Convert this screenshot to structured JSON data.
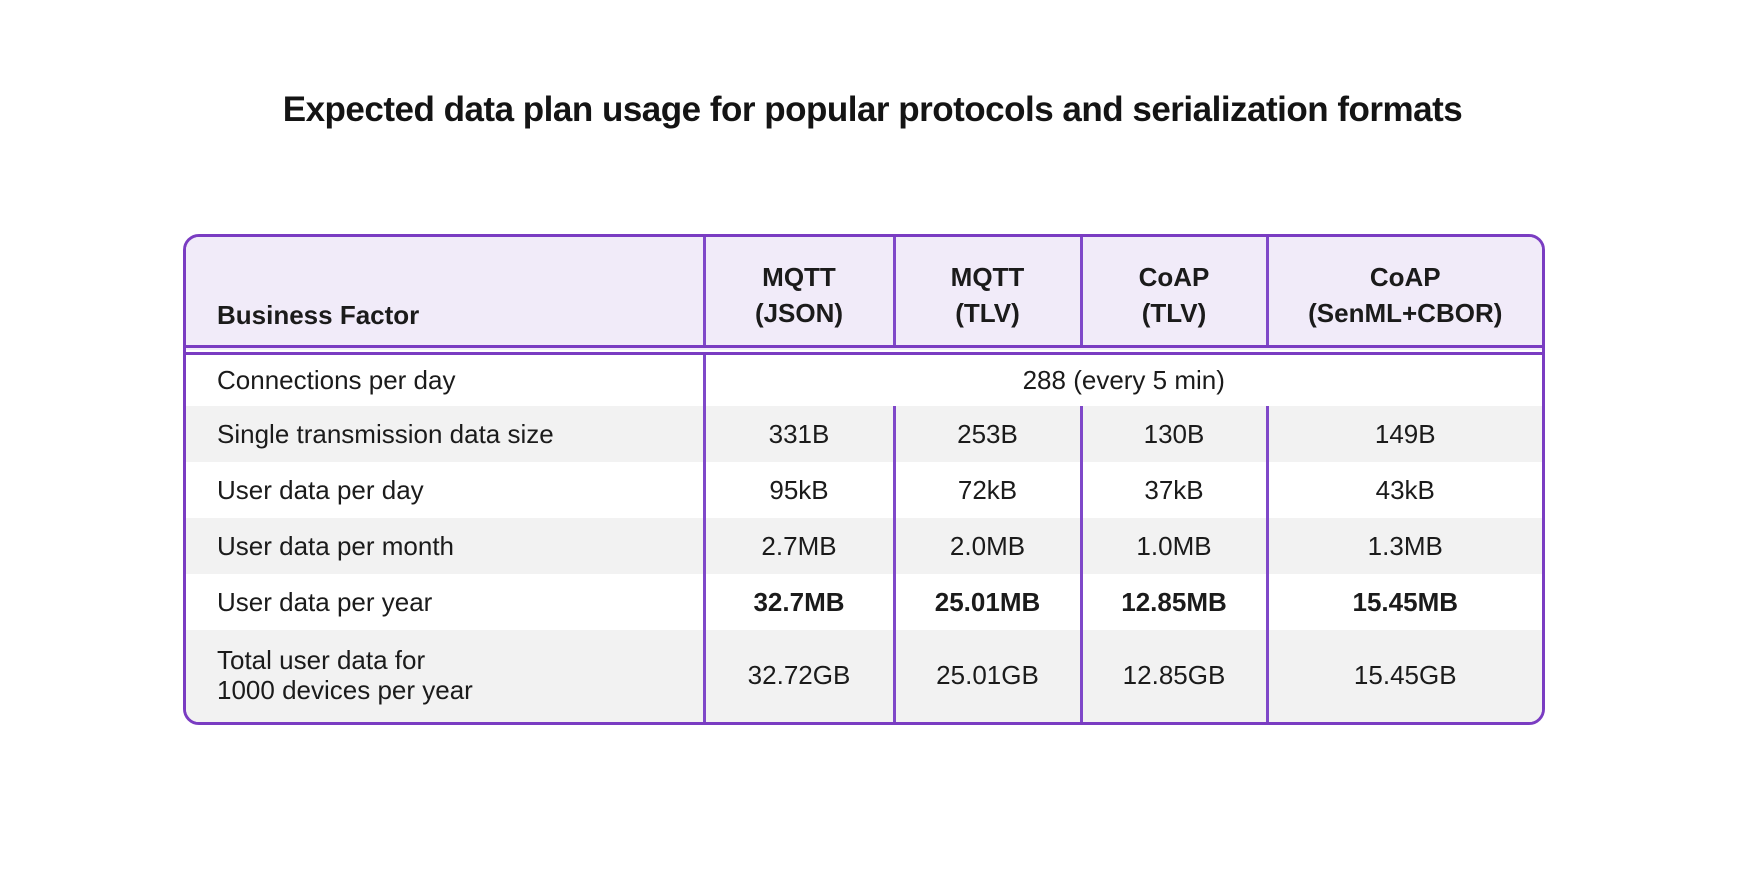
{
  "title": "Expected data plan usage for popular protocols and serialization formats",
  "table": {
    "header": {
      "row_label": "Business Factor",
      "columns": [
        {
          "protocol": "MQTT",
          "format": "(JSON)"
        },
        {
          "protocol": "MQTT",
          "format": "(TLV)"
        },
        {
          "protocol": "CoAP",
          "format": "(TLV)"
        },
        {
          "protocol": "CoAP",
          "format": "(SenML+CBOR)"
        }
      ]
    },
    "merged_row": {
      "label": "Connections per day",
      "value": "288 (every 5 min)"
    },
    "rows": [
      {
        "label": "Single transmission data size",
        "values": [
          "331B",
          "253B",
          "130B",
          "149B"
        ],
        "emphasis": false,
        "shaded": true
      },
      {
        "label": "User data per day",
        "values": [
          "95kB",
          "72kB",
          "37kB",
          "43kB"
        ],
        "emphasis": false,
        "shaded": false
      },
      {
        "label": "User data per month",
        "values": [
          "2.7MB",
          "2.0MB",
          "1.0MB",
          "1.3MB"
        ],
        "emphasis": false,
        "shaded": true
      },
      {
        "label": "User data per year",
        "values": [
          "32.7MB",
          "25.01MB",
          "12.85MB",
          "15.45MB"
        ],
        "emphasis": true,
        "shaded": false
      },
      {
        "label_line1": "Total user data for",
        "label_line2": "1000 devices per year",
        "values": [
          "32.72GB",
          "25.01GB",
          "12.85GB",
          "15.45GB"
        ],
        "emphasis": false,
        "shaded": true
      }
    ],
    "colors": {
      "accent_purple": "#7a3cc2",
      "inner_line_purple": "#7f48c9",
      "header_background": "#f1ebf9",
      "stripe_background": "#f2f2f2",
      "text": "#1b1b1b"
    }
  }
}
